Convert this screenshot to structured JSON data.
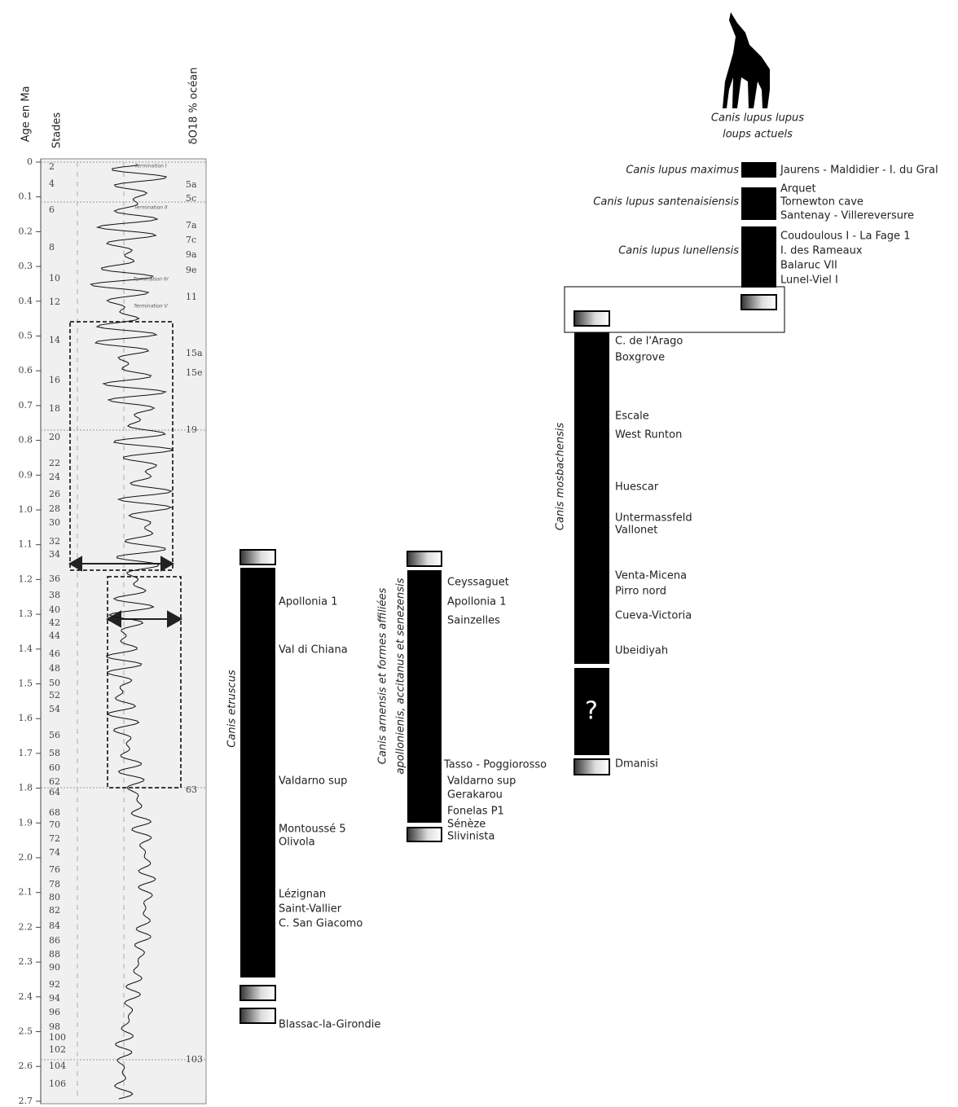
{
  "axis": {
    "age_label": "Age en Ma",
    "stages_label": "Stades",
    "isotope_label": "δO18 % océan",
    "age_ticks": [
      "0",
      "0.1",
      "0.2",
      "0.3",
      "0.4",
      "0.5",
      "0.6",
      "0.7",
      "0.8",
      "0.9",
      "1.0",
      "1.1",
      "1.2",
      "1.3",
      "1.4",
      "1.5",
      "1.6",
      "1.7",
      "1.8",
      "1.9",
      "2.0",
      "2.1",
      "2.2",
      "2.3",
      "2.4",
      "2.5",
      "2.6",
      "2.7"
    ]
  },
  "stages": [
    "2",
    "4",
    "6",
    "8",
    "10",
    "12",
    "14",
    "16",
    "18",
    "20",
    "22",
    "24",
    "26",
    "28",
    "30",
    "32",
    "34",
    "36",
    "38",
    "40",
    "42",
    "44",
    "46",
    "48",
    "50",
    "52",
    "54",
    "56",
    "58",
    "60",
    "62",
    "64",
    "68",
    "70",
    "72",
    "74",
    "76",
    "78",
    "80",
    "82",
    "84",
    "86",
    "88",
    "90",
    "92",
    "94",
    "96",
    "98",
    "100",
    "102",
    "104",
    "106"
  ],
  "isotope_stages": [
    "5a",
    "5c",
    "7a",
    "7c",
    "9a",
    "9e",
    "11",
    "15a",
    "15e",
    "19",
    "63",
    "103"
  ],
  "terminations": [
    "Termination I",
    "Termination II",
    "Termination IV",
    "Termination V"
  ],
  "taxa": [
    {
      "name_lines": [
        "Canis etruscus"
      ],
      "sites": [
        "Apollonia 1",
        "Val di Chiana",
        "Valdarno sup",
        "Montoussé 5",
        "Olivola",
        "Lézignan",
        "Saint-Vallier",
        "C. San Giacomo",
        "Blassac-la-Girondie"
      ]
    },
    {
      "name_lines": [
        "Canis arnensis et formes affiliées",
        "apollonienis, accitanus et senezensis"
      ],
      "sites": [
        "Ceyssaguet",
        "Apollonia 1",
        "Sainzelles",
        "Tasso - Poggiorosso",
        "Valdarno sup",
        "Gerakarou",
        "Fonelas P1",
        "Sénèze",
        "Slivinista"
      ]
    },
    {
      "name_lines": [
        "Canis mosbachensis"
      ],
      "sites": [
        "C. de l'Arago",
        "Boxgrove",
        "Escale",
        "West Runton",
        "Huescar",
        "Untermassfeld",
        "Vallonet",
        "Venta-Micena",
        "Pirro nord",
        "Cueva-Victoria",
        "Ubeidiyah",
        "Dmanisi"
      ],
      "unknown": "?"
    }
  ],
  "lupus": [
    {
      "name": "Canis lupus maximus",
      "sites": [
        "Jaurens - Maldidier - I. du Gral"
      ]
    },
    {
      "name": "Canis lupus santenaisiensis",
      "sites": [
        "Arquet",
        "Tornewton cave",
        "Santenay - Villereversure"
      ]
    },
    {
      "name": "Canis lupus lunellensis",
      "sites": [
        "Coudoulous I - La Fage 1",
        "I. des Rameaux",
        "Balaruc VII",
        "Lunel-Viel I"
      ]
    }
  ],
  "modern": {
    "name": "Canis lupus lupus",
    "caption": "loups actuels"
  }
}
